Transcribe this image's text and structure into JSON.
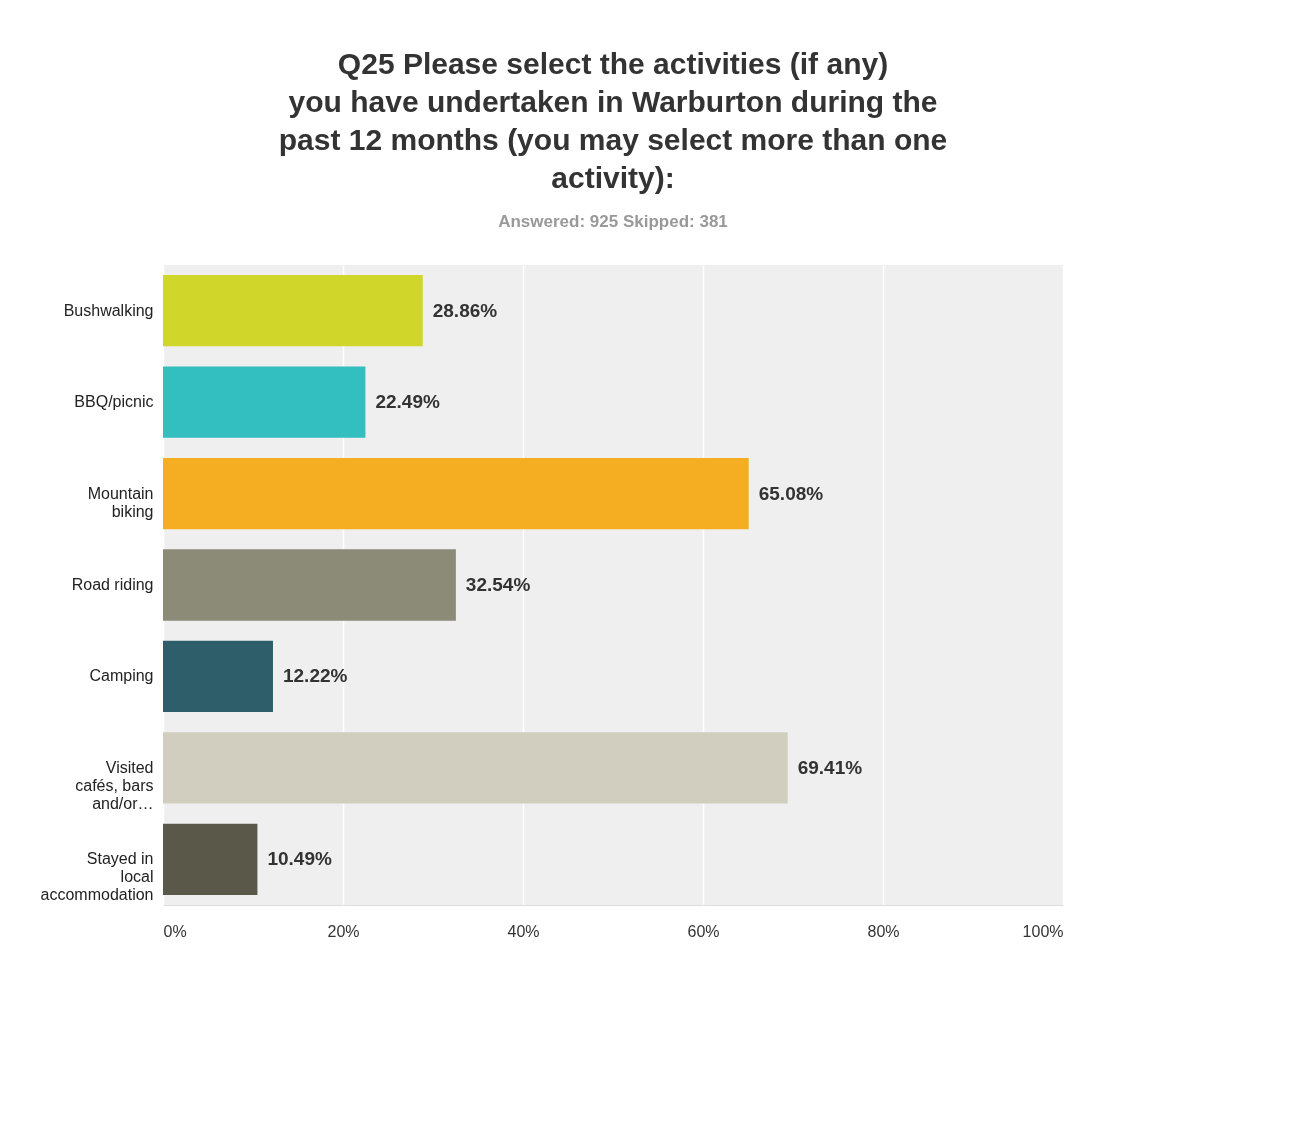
{
  "chart_data": {
    "type": "bar",
    "orientation": "horizontal",
    "title": "Q25 Please select the activities (if any) you have undertaken in Warburton during the past 12 months (you may select more than one activity):",
    "subtitle": "Answered: 925    Skipped: 381",
    "categories": [
      "Bushwalking",
      "BBQ/picnic",
      "Mountain biking",
      "Road riding",
      "Camping",
      "Visited cafés, bars and/or…",
      "Stayed in local accommodation"
    ],
    "values": [
      28.86,
      22.49,
      65.08,
      32.54,
      12.22,
      69.41,
      10.49
    ],
    "colors": [
      "#d0d62a",
      "#33bec0",
      "#f5ae22",
      "#8b8b78",
      "#2d5e6a",
      "#d1cec0",
      "#5a5848"
    ],
    "value_labels": [
      "28.86%",
      "22.49%",
      "65.08%",
      "32.54%",
      "12.22%",
      "69.41%",
      "10.49%"
    ],
    "xlim": [
      0,
      100
    ],
    "xticks": [
      {
        "value": 0,
        "label": "0%"
      },
      {
        "value": 20,
        "label": "20%"
      },
      {
        "value": 40,
        "label": "40%"
      },
      {
        "value": 60,
        "label": "60%"
      },
      {
        "value": 80,
        "label": "80%"
      },
      {
        "value": 100,
        "label": "100%"
      }
    ],
    "grid": "x"
  }
}
